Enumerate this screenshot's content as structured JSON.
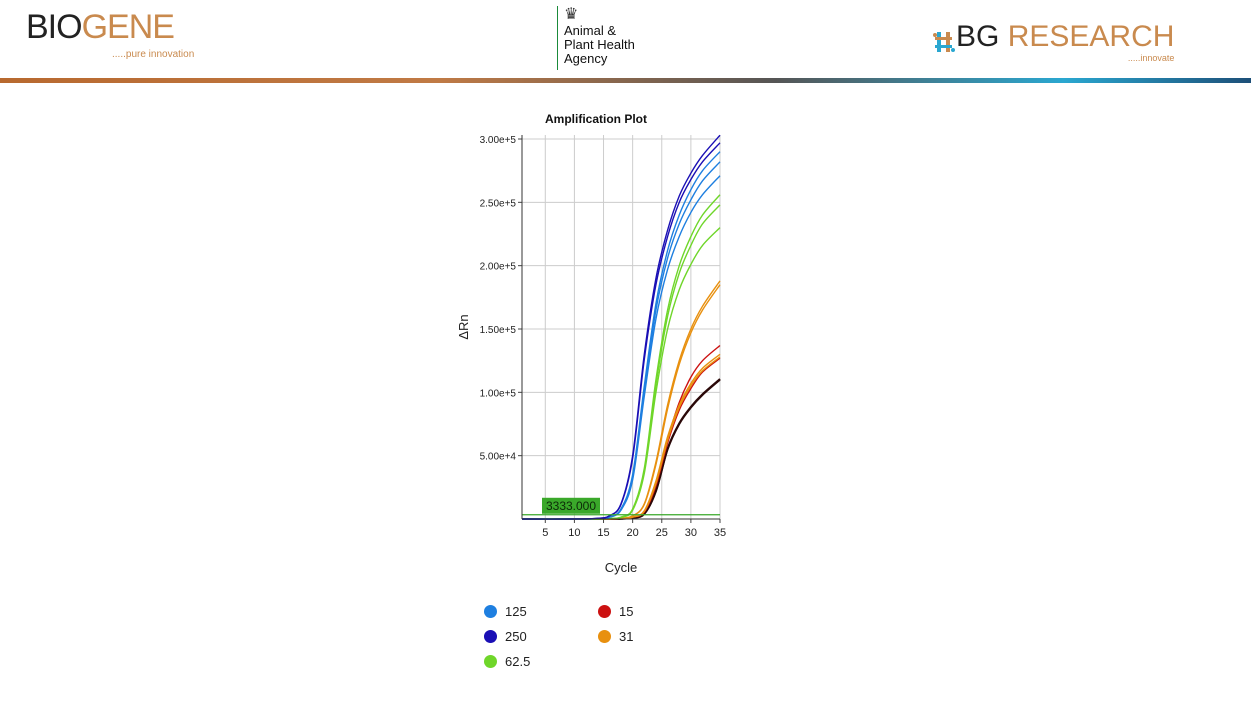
{
  "header": {
    "left_logo": {
      "part1": "BIO",
      "part2": "GENE",
      "tagline": ".....pure innovation"
    },
    "center_logo": {
      "line1": "Animal &",
      "line2": "Plant Health",
      "line3": "Agency"
    },
    "right_logo": {
      "part1": "BG",
      "part2": " RESEARCH",
      "tagline": ".....innovate"
    }
  },
  "chart_data": {
    "type": "line",
    "title": "Amplification Plot",
    "xlabel": "Cycle",
    "ylabel": "ΔRn",
    "xlim": [
      1,
      35
    ],
    "ylim": [
      0,
      300000
    ],
    "xticks": [
      "5",
      "10",
      "15",
      "20",
      "25",
      "30",
      "35"
    ],
    "yticks": [
      "5.00e+4",
      "1.00e+5",
      "1.50e+5",
      "2.00e+5",
      "2.50e+5",
      "3.00e+5"
    ],
    "grid": true,
    "threshold": {
      "value": 3333,
      "label": "3333.000",
      "color": "#3aa82a"
    },
    "legend_position": "bottom",
    "x": [
      1,
      10,
      14,
      16,
      18,
      20,
      22,
      24,
      26,
      28,
      30,
      32,
      35
    ],
    "series": [
      {
        "name": "250",
        "color": "#1a0fb5",
        "replicates": [
          [
            0,
            0,
            500,
            2500,
            12000,
            50000,
            130000,
            190000,
            228000,
            255000,
            273000,
            287000,
            303000
          ],
          [
            0,
            0,
            500,
            2400,
            11500,
            48000,
            126000,
            185000,
            223000,
            250000,
            268000,
            282000,
            297000
          ]
        ]
      },
      {
        "name": "125",
        "color": "#1e7fe0",
        "replicates": [
          [
            0,
            0,
            300,
            1500,
            8000,
            35000,
            105000,
            170000,
            212000,
            240000,
            260000,
            275000,
            290000
          ],
          [
            0,
            0,
            300,
            1400,
            7500,
            33000,
            101000,
            165000,
            206000,
            233000,
            252000,
            267000,
            282000
          ],
          [
            0,
            0,
            250,
            1300,
            7000,
            31000,
            97000,
            158000,
            197000,
            223000,
            242000,
            256000,
            271000
          ]
        ]
      },
      {
        "name": "62.5",
        "color": "#6fd62a",
        "replicates": [
          [
            0,
            0,
            0,
            300,
            1500,
            8000,
            40000,
            110000,
            165000,
            200000,
            223000,
            240000,
            256000
          ],
          [
            0,
            0,
            0,
            300,
            1400,
            7500,
            38000,
            106000,
            160000,
            194000,
            216000,
            233000,
            248000
          ],
          [
            0,
            0,
            0,
            250,
            1300,
            7000,
            36000,
            100000,
            150000,
            181000,
            201000,
            216000,
            230000
          ]
        ]
      },
      {
        "name": "31",
        "color": "#e8900f",
        "replicates": [
          [
            0,
            0,
            0,
            0,
            500,
            2500,
            12000,
            45000,
            90000,
            125000,
            150000,
            168000,
            188000
          ],
          [
            0,
            0,
            0,
            0,
            480,
            2400,
            11500,
            43000,
            87000,
            122000,
            147000,
            165000,
            185000
          ],
          [
            0,
            0,
            0,
            0,
            300,
            1500,
            6500,
            30000,
            65000,
            90000,
            107000,
            119000,
            130000
          ],
          [
            0,
            0,
            0,
            0,
            300,
            1500,
            6000,
            28000,
            62000,
            88000,
            105000,
            117000,
            128000
          ]
        ]
      },
      {
        "name": "15",
        "color": "#cc1111",
        "replicates": [
          [
            0,
            0,
            0,
            0,
            300,
            1500,
            6000,
            28000,
            63000,
            92000,
            112000,
            125000,
            137000
          ],
          [
            0,
            0,
            0,
            0,
            280,
            1400,
            5500,
            26000,
            60000,
            86000,
            103000,
            116000,
            127000
          ]
        ]
      },
      {
        "color": "#2a0808",
        "replicates": [
          [
            0,
            0,
            0,
            0,
            200,
            1000,
            4000,
            22000,
            55000,
            75000,
            88000,
            98000,
            110000
          ],
          [
            0,
            0,
            0,
            0,
            200,
            1000,
            4200,
            22500,
            55500,
            75500,
            88500,
            98500,
            110500
          ]
        ]
      }
    ]
  },
  "legend": [
    {
      "label": "125",
      "color": "#1e7fe0"
    },
    {
      "label": "250",
      "color": "#1a0fb5"
    },
    {
      "label": "62.5",
      "color": "#6fd62a"
    },
    {
      "label": "15",
      "color": "#cc1111"
    },
    {
      "label": "31",
      "color": "#e8900f"
    }
  ]
}
